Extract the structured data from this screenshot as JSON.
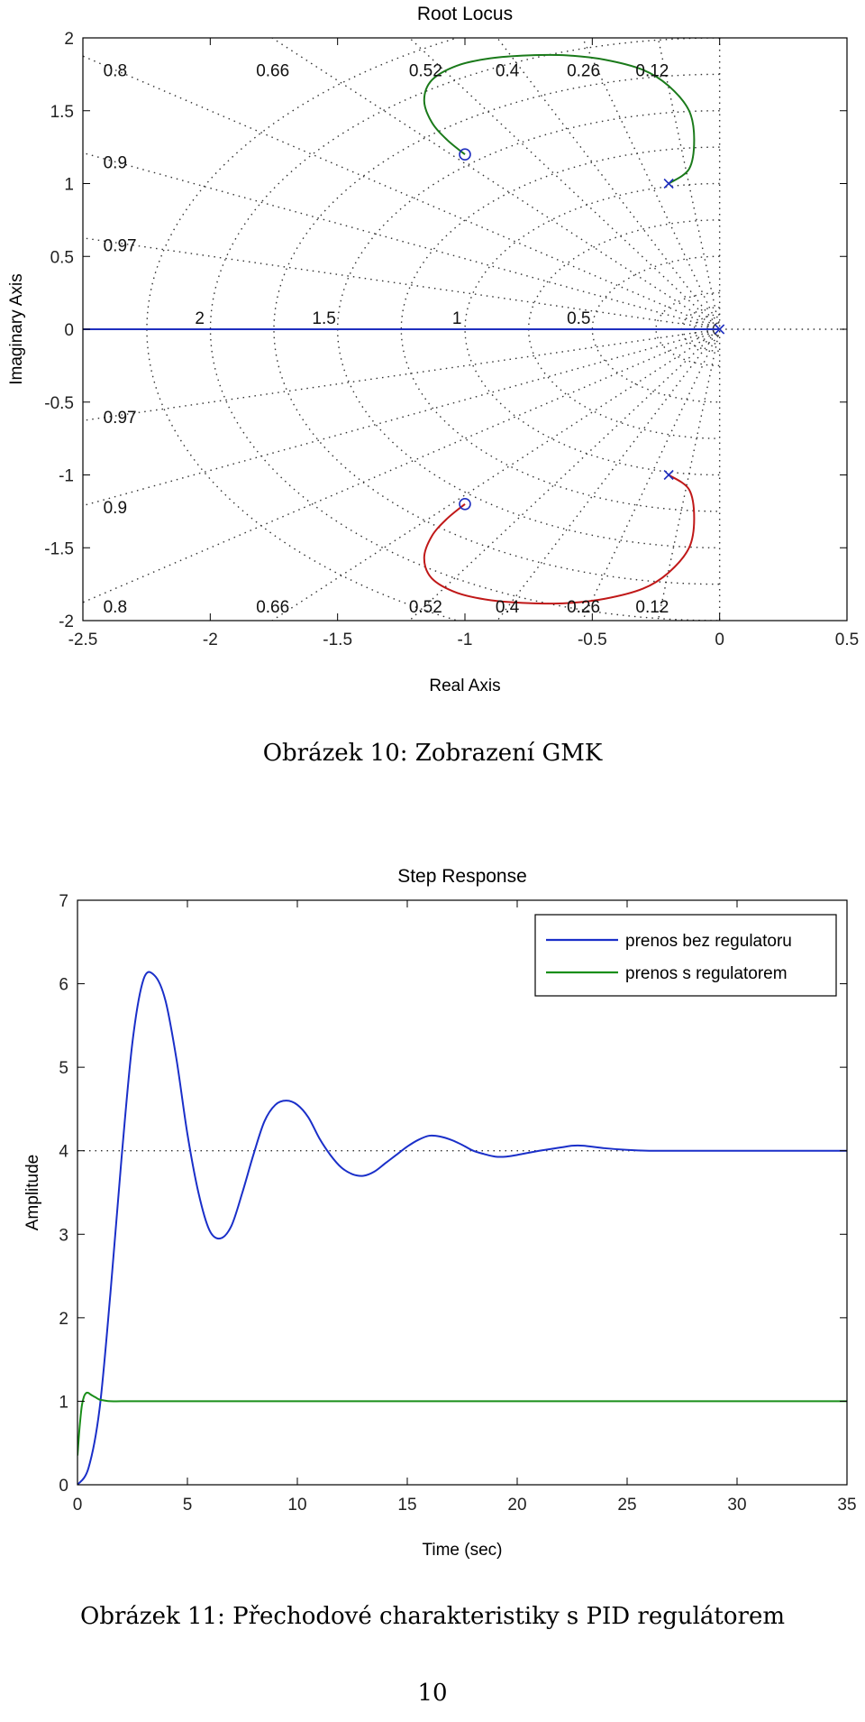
{
  "figure10": {
    "caption": "Obrázek 10: Zobrazení GMK",
    "chart_data": {
      "type": "line",
      "title": "Root Locus",
      "xlabel": "Real Axis",
      "ylabel": "Imaginary Axis",
      "xlim": [
        -2.5,
        0.5
      ],
      "ylim": [
        -2,
        2
      ],
      "xticks": [
        "-2.5",
        "-2",
        "-1.5",
        "-1",
        "-0.5",
        "0",
        "0.5"
      ],
      "yticks": [
        "2",
        "1.5",
        "1",
        "0.5",
        "0",
        "-0.5",
        "-1",
        "-1.5",
        "-2"
      ],
      "grid": "on",
      "damping_labels": [
        "0.8",
        "0.66",
        "0.52",
        "0.4",
        "0.26",
        "0.12",
        "0.9",
        "0.97"
      ],
      "frequency_labels": [
        "2",
        "1.5",
        "1",
        "0.5"
      ],
      "poles": [
        [
          0,
          0
        ],
        [
          -0.2,
          1.0
        ],
        [
          -0.2,
          -1.0
        ]
      ],
      "zeros": [
        [
          -1.0,
          1.2
        ],
        [
          -1.0,
          -1.2
        ]
      ],
      "series": [
        {
          "color": "#1f2fbf",
          "x": [
            0,
            -0.5,
            -1.0,
            -1.5,
            -2.0,
            -2.5
          ],
          "y": [
            0,
            0,
            0,
            0,
            0,
            0
          ]
        },
        {
          "color": "#1a7a1a",
          "x": [
            -0.2,
            -0.12,
            -0.1,
            -0.12,
            -0.2,
            -0.3,
            -0.45,
            -0.6,
            -0.75,
            -0.9,
            -1.03,
            -1.13,
            -1.16,
            -1.13,
            -1.07,
            -1.0
          ],
          "y": [
            1.0,
            1.1,
            1.3,
            1.5,
            1.67,
            1.78,
            1.85,
            1.88,
            1.88,
            1.86,
            1.81,
            1.71,
            1.57,
            1.42,
            1.3,
            1.2
          ]
        },
        {
          "color": "#c01818",
          "x": [
            -0.2,
            -0.12,
            -0.1,
            -0.12,
            -0.2,
            -0.3,
            -0.45,
            -0.6,
            -0.75,
            -0.9,
            -1.03,
            -1.13,
            -1.16,
            -1.13,
            -1.07,
            -1.0
          ],
          "y": [
            -1.0,
            -1.1,
            -1.3,
            -1.5,
            -1.67,
            -1.78,
            -1.85,
            -1.88,
            -1.88,
            -1.86,
            -1.81,
            -1.71,
            -1.57,
            -1.42,
            -1.3,
            -1.2
          ]
        }
      ]
    }
  },
  "figure11": {
    "caption": "Obrázek 11: Přechodové charakteristiky s PID regulátorem",
    "chart_data": {
      "type": "line",
      "title": "Step Response",
      "xlabel": "Time (sec)",
      "ylabel": "Amplitude",
      "xlim": [
        0,
        35
      ],
      "ylim": [
        0,
        7
      ],
      "xticks": [
        "0",
        "5",
        "10",
        "15",
        "20",
        "25",
        "30",
        "35"
      ],
      "yticks": [
        "7",
        "6",
        "5",
        "4",
        "3",
        "2",
        "1",
        "0"
      ],
      "legend_position": "top-right",
      "steady_state_reference": 4.0,
      "series": [
        {
          "name": "prenos bez regulatoru",
          "color": "#1a2fc9",
          "x": [
            0,
            0.5,
            1,
            1.5,
            2,
            2.5,
            3,
            3.5,
            4,
            4.5,
            5,
            5.5,
            6,
            6.5,
            7,
            7.5,
            8,
            8.5,
            9,
            9.5,
            10,
            10.5,
            11,
            11.5,
            12,
            12.5,
            13,
            13.5,
            14,
            14.5,
            15,
            15.5,
            16,
            16.5,
            17,
            17.5,
            18,
            18.5,
            19,
            19.5,
            20,
            21,
            22,
            22.5,
            23,
            24,
            25,
            26,
            27,
            28,
            30,
            32,
            35
          ],
          "y": [
            0,
            0.2,
            0.9,
            2.3,
            3.9,
            5.3,
            6.05,
            6.1,
            5.8,
            5.1,
            4.2,
            3.5,
            3.05,
            2.95,
            3.1,
            3.5,
            3.95,
            4.35,
            4.55,
            4.6,
            4.55,
            4.4,
            4.15,
            3.95,
            3.8,
            3.72,
            3.7,
            3.75,
            3.85,
            3.95,
            4.05,
            4.13,
            4.18,
            4.17,
            4.13,
            4.07,
            4.0,
            3.96,
            3.93,
            3.93,
            3.95,
            4.0,
            4.04,
            4.06,
            4.06,
            4.03,
            4.01,
            4.0,
            4.0,
            4.0,
            4.0,
            4.0,
            4.0
          ]
        },
        {
          "name": "prenos s regulatorem",
          "color": "#1a8f1a",
          "x": [
            0,
            0.1,
            0.2,
            0.3,
            0.4,
            0.5,
            0.6,
            0.8,
            1,
            1.2,
            1.5,
            2,
            3,
            5,
            10,
            20,
            35
          ],
          "y": [
            0.35,
            0.7,
            0.95,
            1.06,
            1.1,
            1.1,
            1.08,
            1.05,
            1.02,
            1.01,
            1.0,
            1.0,
            1.0,
            1.0,
            1.0,
            1.0,
            1.0
          ]
        }
      ]
    }
  },
  "page_number": "10"
}
